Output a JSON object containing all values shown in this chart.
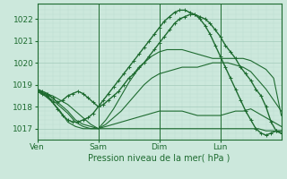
{
  "xlabel": "Pression niveau de la mer( hPa )",
  "ylim": [
    1016.5,
    1022.7
  ],
  "xlim": [
    0,
    96
  ],
  "yticks": [
    1017,
    1018,
    1019,
    1020,
    1021,
    1022
  ],
  "xtick_positions": [
    0,
    24,
    48,
    72
  ],
  "xtick_labels": [
    "Ven",
    "Sam",
    "Dim",
    "Lun"
  ],
  "bg_color": "#cce8dc",
  "grid_major_color": "#aacfc0",
  "grid_minor_color": "#bcddd0",
  "line_color": "#1e6b30",
  "series": [
    {
      "x": [
        0,
        3,
        6,
        9,
        12,
        15,
        18,
        21,
        24,
        27,
        30,
        33,
        36,
        39,
        42,
        45,
        48,
        51,
        54,
        57,
        60,
        63,
        66,
        69,
        72,
        75,
        78,
        81,
        84,
        87,
        90,
        93,
        96
      ],
      "y": [
        1018.7,
        1018.6,
        1018.5,
        1018.3,
        1018.1,
        1017.8,
        1017.5,
        1017.2,
        1017.0,
        1017.0,
        1017.0,
        1017.0,
        1017.0,
        1017.0,
        1017.0,
        1017.0,
        1017.0,
        1017.0,
        1017.0,
        1017.0,
        1017.0,
        1017.0,
        1017.0,
        1017.0,
        1017.0,
        1017.0,
        1017.0,
        1017.0,
        1017.0,
        1017.0,
        1016.9,
        1016.9,
        1016.8
      ],
      "marker": false,
      "lw": 0.8
    },
    {
      "x": [
        0,
        3,
        6,
        9,
        12,
        15,
        18,
        21,
        24,
        27,
        30,
        33,
        36,
        39,
        42,
        45,
        48,
        51,
        54,
        57,
        60,
        63,
        66,
        69,
        72,
        75,
        78,
        81,
        84,
        87,
        90,
        93,
        96
      ],
      "y": [
        1018.7,
        1018.6,
        1018.4,
        1018.1,
        1017.8,
        1017.4,
        1017.2,
        1017.1,
        1017.0,
        1017.1,
        1017.2,
        1017.3,
        1017.4,
        1017.5,
        1017.6,
        1017.7,
        1017.8,
        1017.8,
        1017.8,
        1017.8,
        1017.7,
        1017.6,
        1017.6,
        1017.6,
        1017.6,
        1017.7,
        1017.8,
        1017.8,
        1017.9,
        1017.7,
        1017.5,
        1017.3,
        1017.1
      ],
      "marker": false,
      "lw": 0.8
    },
    {
      "x": [
        0,
        3,
        6,
        9,
        12,
        15,
        18,
        21,
        24,
        27,
        30,
        33,
        36,
        39,
        42,
        45,
        48,
        51,
        54,
        57,
        60,
        63,
        66,
        69,
        72,
        75,
        78,
        81,
        84,
        87,
        90,
        93,
        96
      ],
      "y": [
        1018.7,
        1018.5,
        1018.3,
        1018.0,
        1017.7,
        1017.3,
        1017.1,
        1017.0,
        1017.0,
        1017.2,
        1017.5,
        1017.8,
        1018.2,
        1018.6,
        1019.0,
        1019.3,
        1019.5,
        1019.6,
        1019.7,
        1019.8,
        1019.8,
        1019.8,
        1019.9,
        1020.0,
        1020.0,
        1020.0,
        1019.9,
        1019.8,
        1019.6,
        1019.2,
        1018.8,
        1018.3,
        1017.8
      ],
      "marker": false,
      "lw": 0.8
    },
    {
      "x": [
        0,
        3,
        6,
        9,
        12,
        15,
        18,
        21,
        24,
        27,
        30,
        33,
        36,
        39,
        42,
        45,
        48,
        51,
        54,
        57,
        60,
        63,
        66,
        69,
        72,
        75,
        78,
        81,
        84,
        87,
        90,
        93,
        96
      ],
      "y": [
        1018.7,
        1018.5,
        1018.2,
        1017.8,
        1017.3,
        1017.1,
        1017.0,
        1017.0,
        1017.0,
        1017.4,
        1017.9,
        1018.5,
        1019.1,
        1019.6,
        1020.0,
        1020.3,
        1020.5,
        1020.6,
        1020.6,
        1020.6,
        1020.5,
        1020.4,
        1020.3,
        1020.2,
        1020.2,
        1020.2,
        1020.2,
        1020.2,
        1020.1,
        1019.9,
        1019.7,
        1019.3,
        1017.6
      ],
      "marker": false,
      "lw": 0.8
    },
    {
      "x": [
        0,
        2,
        4,
        6,
        8,
        10,
        12,
        14,
        16,
        18,
        20,
        22,
        24,
        26,
        28,
        30,
        32,
        34,
        36,
        38,
        40,
        42,
        44,
        46,
        48,
        50,
        52,
        54,
        56,
        58,
        60,
        62,
        64,
        66,
        68,
        70,
        72,
        74,
        76,
        78,
        80,
        82,
        84,
        86,
        88,
        90,
        92,
        94,
        96
      ],
      "y": [
        1018.8,
        1018.7,
        1018.6,
        1018.4,
        1018.2,
        1018.3,
        1018.5,
        1018.6,
        1018.7,
        1018.6,
        1018.4,
        1018.2,
        1018.0,
        1018.1,
        1018.3,
        1018.5,
        1018.7,
        1019.0,
        1019.3,
        1019.5,
        1019.8,
        1020.0,
        1020.3,
        1020.6,
        1020.9,
        1021.2,
        1021.5,
        1021.8,
        1022.0,
        1022.1,
        1022.2,
        1022.2,
        1022.1,
        1022.0,
        1021.8,
        1021.5,
        1021.2,
        1020.8,
        1020.5,
        1020.2,
        1019.8,
        1019.5,
        1019.2,
        1018.8,
        1018.5,
        1018.0,
        1017.3,
        1016.9,
        1016.8
      ],
      "marker": true,
      "lw": 1.0
    },
    {
      "x": [
        0,
        2,
        4,
        6,
        8,
        10,
        12,
        14,
        16,
        18,
        20,
        22,
        24,
        26,
        28,
        30,
        32,
        34,
        36,
        38,
        40,
        42,
        44,
        46,
        48,
        50,
        52,
        54,
        56,
        58,
        60,
        62,
        64,
        66,
        68,
        70,
        72,
        74,
        76,
        78,
        80,
        82,
        84,
        86,
        88,
        90,
        92,
        94,
        96
      ],
      "y": [
        1018.8,
        1018.6,
        1018.5,
        1018.2,
        1017.9,
        1017.6,
        1017.4,
        1017.3,
        1017.3,
        1017.4,
        1017.5,
        1017.7,
        1018.0,
        1018.3,
        1018.6,
        1018.9,
        1019.2,
        1019.5,
        1019.8,
        1020.1,
        1020.4,
        1020.7,
        1021.0,
        1021.3,
        1021.6,
        1021.9,
        1022.1,
        1022.3,
        1022.4,
        1022.4,
        1022.3,
        1022.2,
        1022.0,
        1021.7,
        1021.3,
        1020.8,
        1020.3,
        1019.8,
        1019.3,
        1018.8,
        1018.3,
        1017.8,
        1017.4,
        1017.0,
        1016.8,
        1016.7,
        1016.8,
        1016.9,
        1016.9
      ],
      "marker": true,
      "lw": 1.0
    }
  ]
}
